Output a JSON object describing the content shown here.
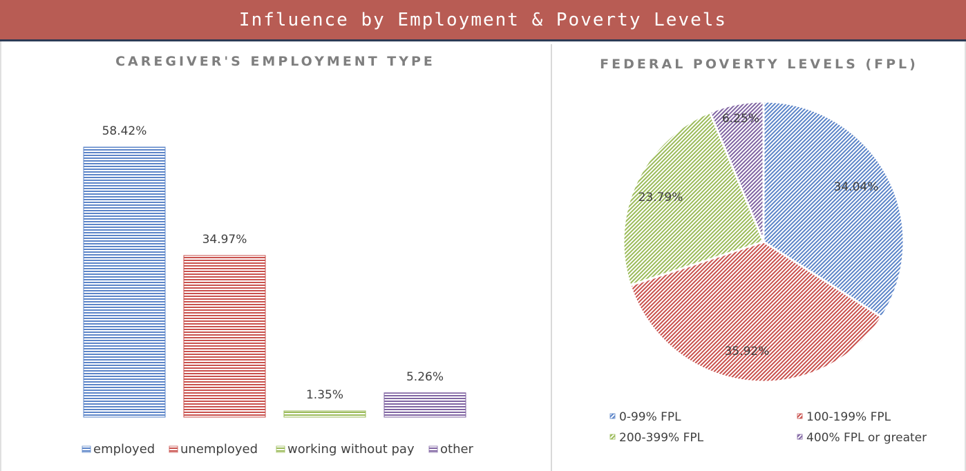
{
  "header": {
    "title": "Influence by Employment & Poverty Levels"
  },
  "colors": {
    "banner": "#b85c54",
    "banner_border": "#2d3a55",
    "blue": "#5b84c8",
    "red": "#c9504c",
    "green": "#9bbb59",
    "purple": "#8064a2",
    "title_text": "#7f7f7f"
  },
  "chart_data": [
    {
      "type": "bar",
      "title": "CAREGIVER'S EMPLOYMENT TYPE",
      "categories": [
        "employed",
        "unemployed",
        "working without pay",
        "other"
      ],
      "values": [
        58.42,
        34.97,
        1.35,
        5.26
      ],
      "labels": [
        "58.42%",
        "34.97%",
        "1.35%",
        "5.26%"
      ],
      "ylim": [
        0,
        70
      ],
      "grid": false,
      "legend": "bottom"
    },
    {
      "type": "pie",
      "title": "FEDERAL POVERTY LEVELS (FPL)",
      "categories": [
        "0-99% FPL",
        "100-199% FPL",
        "200-399% FPL",
        "400% FPL or greater"
      ],
      "values": [
        34.04,
        35.92,
        23.79,
        6.25
      ],
      "labels": [
        "34.04%",
        "35.92%",
        "23.79%",
        "6.25%"
      ],
      "legend": "bottom"
    }
  ]
}
